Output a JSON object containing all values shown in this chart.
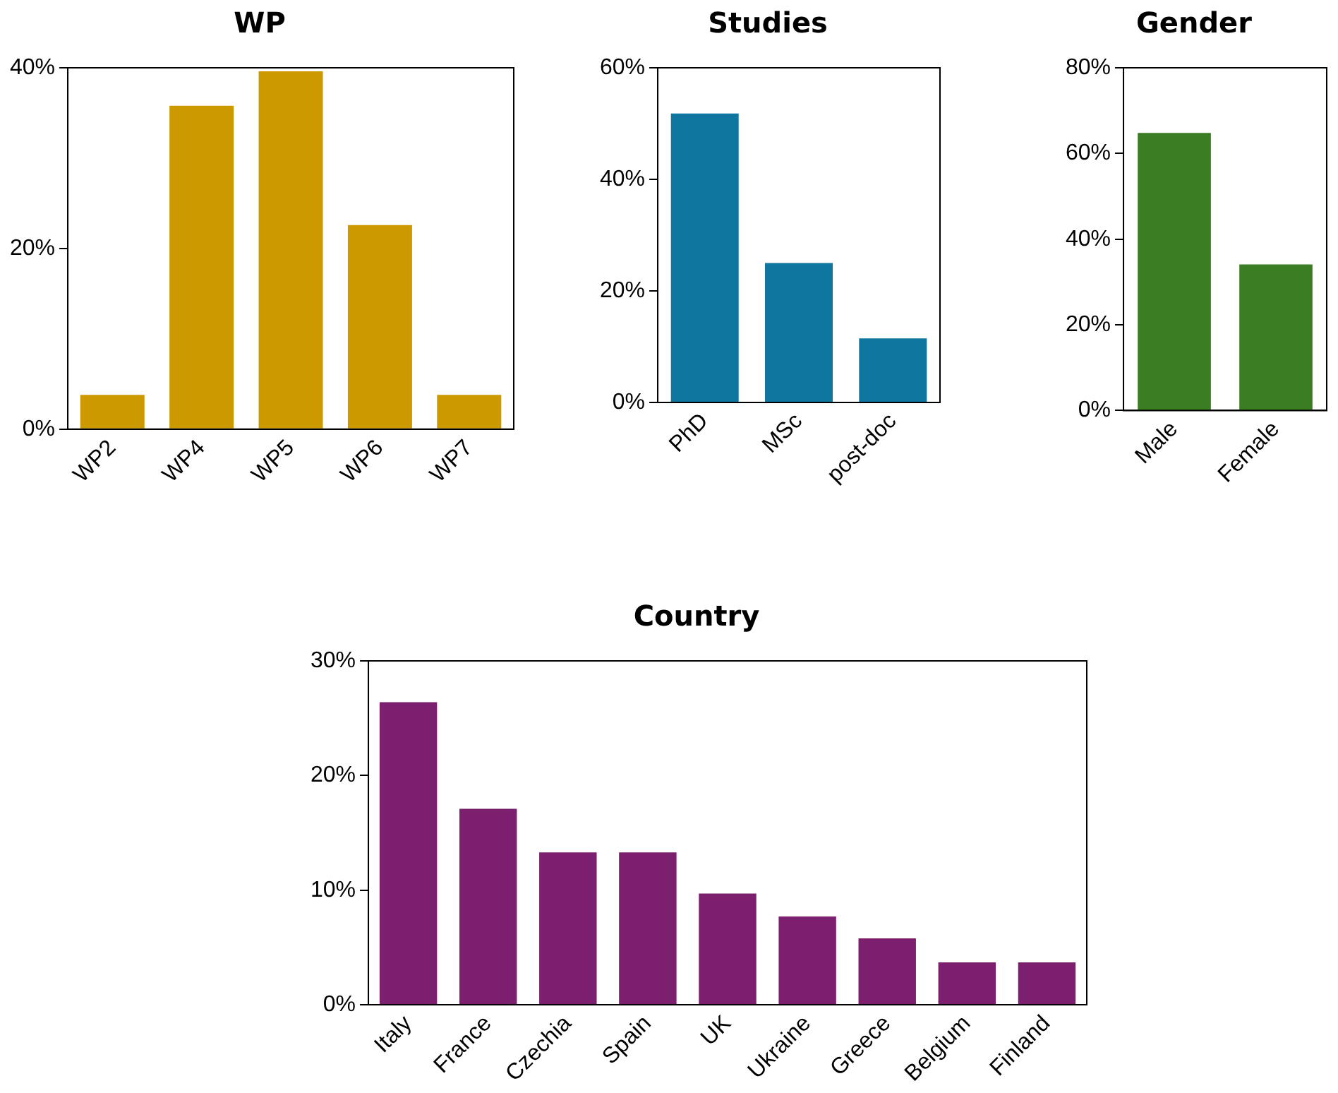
{
  "chart_data": [
    {
      "type": "bar",
      "title": "WP",
      "categories": [
        "WP2",
        "WP4",
        "WP5",
        "WP6",
        "WP7"
      ],
      "values": [
        3.8,
        35.8,
        39.6,
        22.6,
        3.8
      ],
      "color": "#cc9900",
      "ylim": [
        0,
        40
      ],
      "yticks": [
        {
          "value": 0,
          "label": "0%"
        },
        {
          "value": 20,
          "label": "20%"
        },
        {
          "value": 40,
          "label": "40%"
        }
      ],
      "grid": false,
      "legend": false
    },
    {
      "type": "bar",
      "title": "Studies",
      "categories": [
        "PhD",
        "MSc",
        "post-doc"
      ],
      "values": [
        51.8,
        25.0,
        11.5
      ],
      "color": "#0f76a0",
      "ylim": [
        0,
        60
      ],
      "yticks": [
        {
          "value": 0,
          "label": "0%"
        },
        {
          "value": 20,
          "label": "20%"
        },
        {
          "value": 40,
          "label": "40%"
        },
        {
          "value": 60,
          "label": "60%"
        }
      ],
      "grid": false,
      "legend": false
    },
    {
      "type": "bar",
      "title": "Gender",
      "categories": [
        "Male",
        "Female"
      ],
      "values": [
        64.8,
        34.1
      ],
      "color": "#3b7d23",
      "ylim": [
        0,
        80
      ],
      "yticks": [
        {
          "value": 0,
          "label": "0%"
        },
        {
          "value": 20,
          "label": "20%"
        },
        {
          "value": 40,
          "label": "40%"
        },
        {
          "value": 60,
          "label": "60%"
        },
        {
          "value": 80,
          "label": "80%"
        }
      ],
      "grid": false,
      "legend": false
    },
    {
      "type": "bar",
      "title": "Country",
      "categories": [
        "Italy",
        "France",
        "Czechia",
        "Spain",
        "UK",
        "Ukraine",
        "Greece",
        "Belgium",
        "Finland"
      ],
      "values": [
        26.4,
        17.1,
        13.3,
        13.3,
        9.7,
        7.7,
        5.8,
        3.7,
        3.7
      ],
      "color": "#7b1f6e",
      "ylim": [
        0,
        30
      ],
      "yticks": [
        {
          "value": 0,
          "label": "0%"
        },
        {
          "value": 10,
          "label": "10%"
        },
        {
          "value": 20,
          "label": "20%"
        },
        {
          "value": 30,
          "label": "30%"
        }
      ],
      "grid": false,
      "legend": false
    }
  ]
}
